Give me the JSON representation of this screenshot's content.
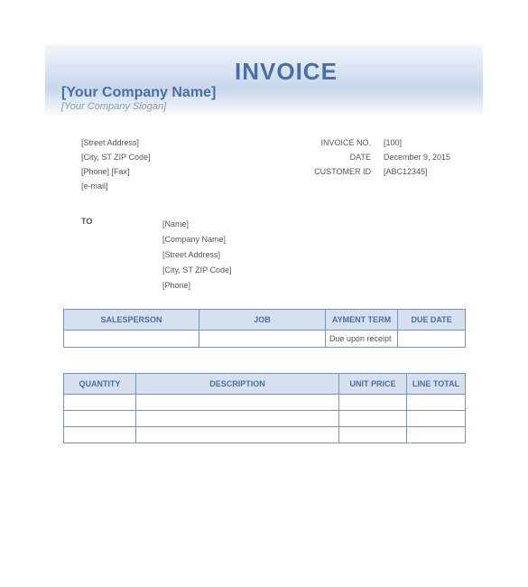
{
  "header": {
    "title": "INVOICE",
    "company_name": "[Your Company Name]",
    "company_slogan": "[Your Company Slogan]"
  },
  "from": {
    "street": "[Street Address]",
    "city": "[City, ST  ZIP Code]",
    "phone_fax": "[Phone]  [Fax]",
    "email": "[e-mail]"
  },
  "meta": {
    "invoice_no_label": "INVOICE NO.",
    "invoice_no": "[100]",
    "date_label": "DATE",
    "date": "December 9, 2015",
    "customer_id_label": "CUSTOMER ID",
    "customer_id": "[ABC12345]"
  },
  "to": {
    "label": "TO",
    "name": "[Name]",
    "company": "[Company Name]",
    "street": "[Street Address]",
    "city": "[City, ST  ZIP Code]",
    "phone": "[Phone]"
  },
  "table1": {
    "headers": [
      "SALESPERSON",
      "JOB",
      "AYMENT TERM",
      "DUE DATE"
    ],
    "row": [
      "",
      "",
      "Due upon receipt",
      ""
    ]
  },
  "table2": {
    "headers": [
      "QUANTITY",
      "DESCRIPTION",
      "UNIT PRICE",
      "LINE TOTAL"
    ],
    "rows": [
      [
        "",
        "",
        "",
        ""
      ],
      [
        "",
        "",
        "",
        ""
      ],
      [
        "",
        "",
        "",
        ""
      ]
    ]
  },
  "styling": {
    "background_color": "#ffffff",
    "header_gradient_top": "#f2f6fb",
    "header_gradient_mid": "#c8d7ec",
    "accent_color": "#4a6fa5",
    "slogan_color": "#8a9bb5",
    "table_header_bg": "#d6e0ef",
    "table_border": "#7a94b8",
    "body_text_color": "#555555",
    "title_fontsize": 26,
    "company_fontsize": 16,
    "slogan_fontsize": 11,
    "body_fontsize": 9
  }
}
